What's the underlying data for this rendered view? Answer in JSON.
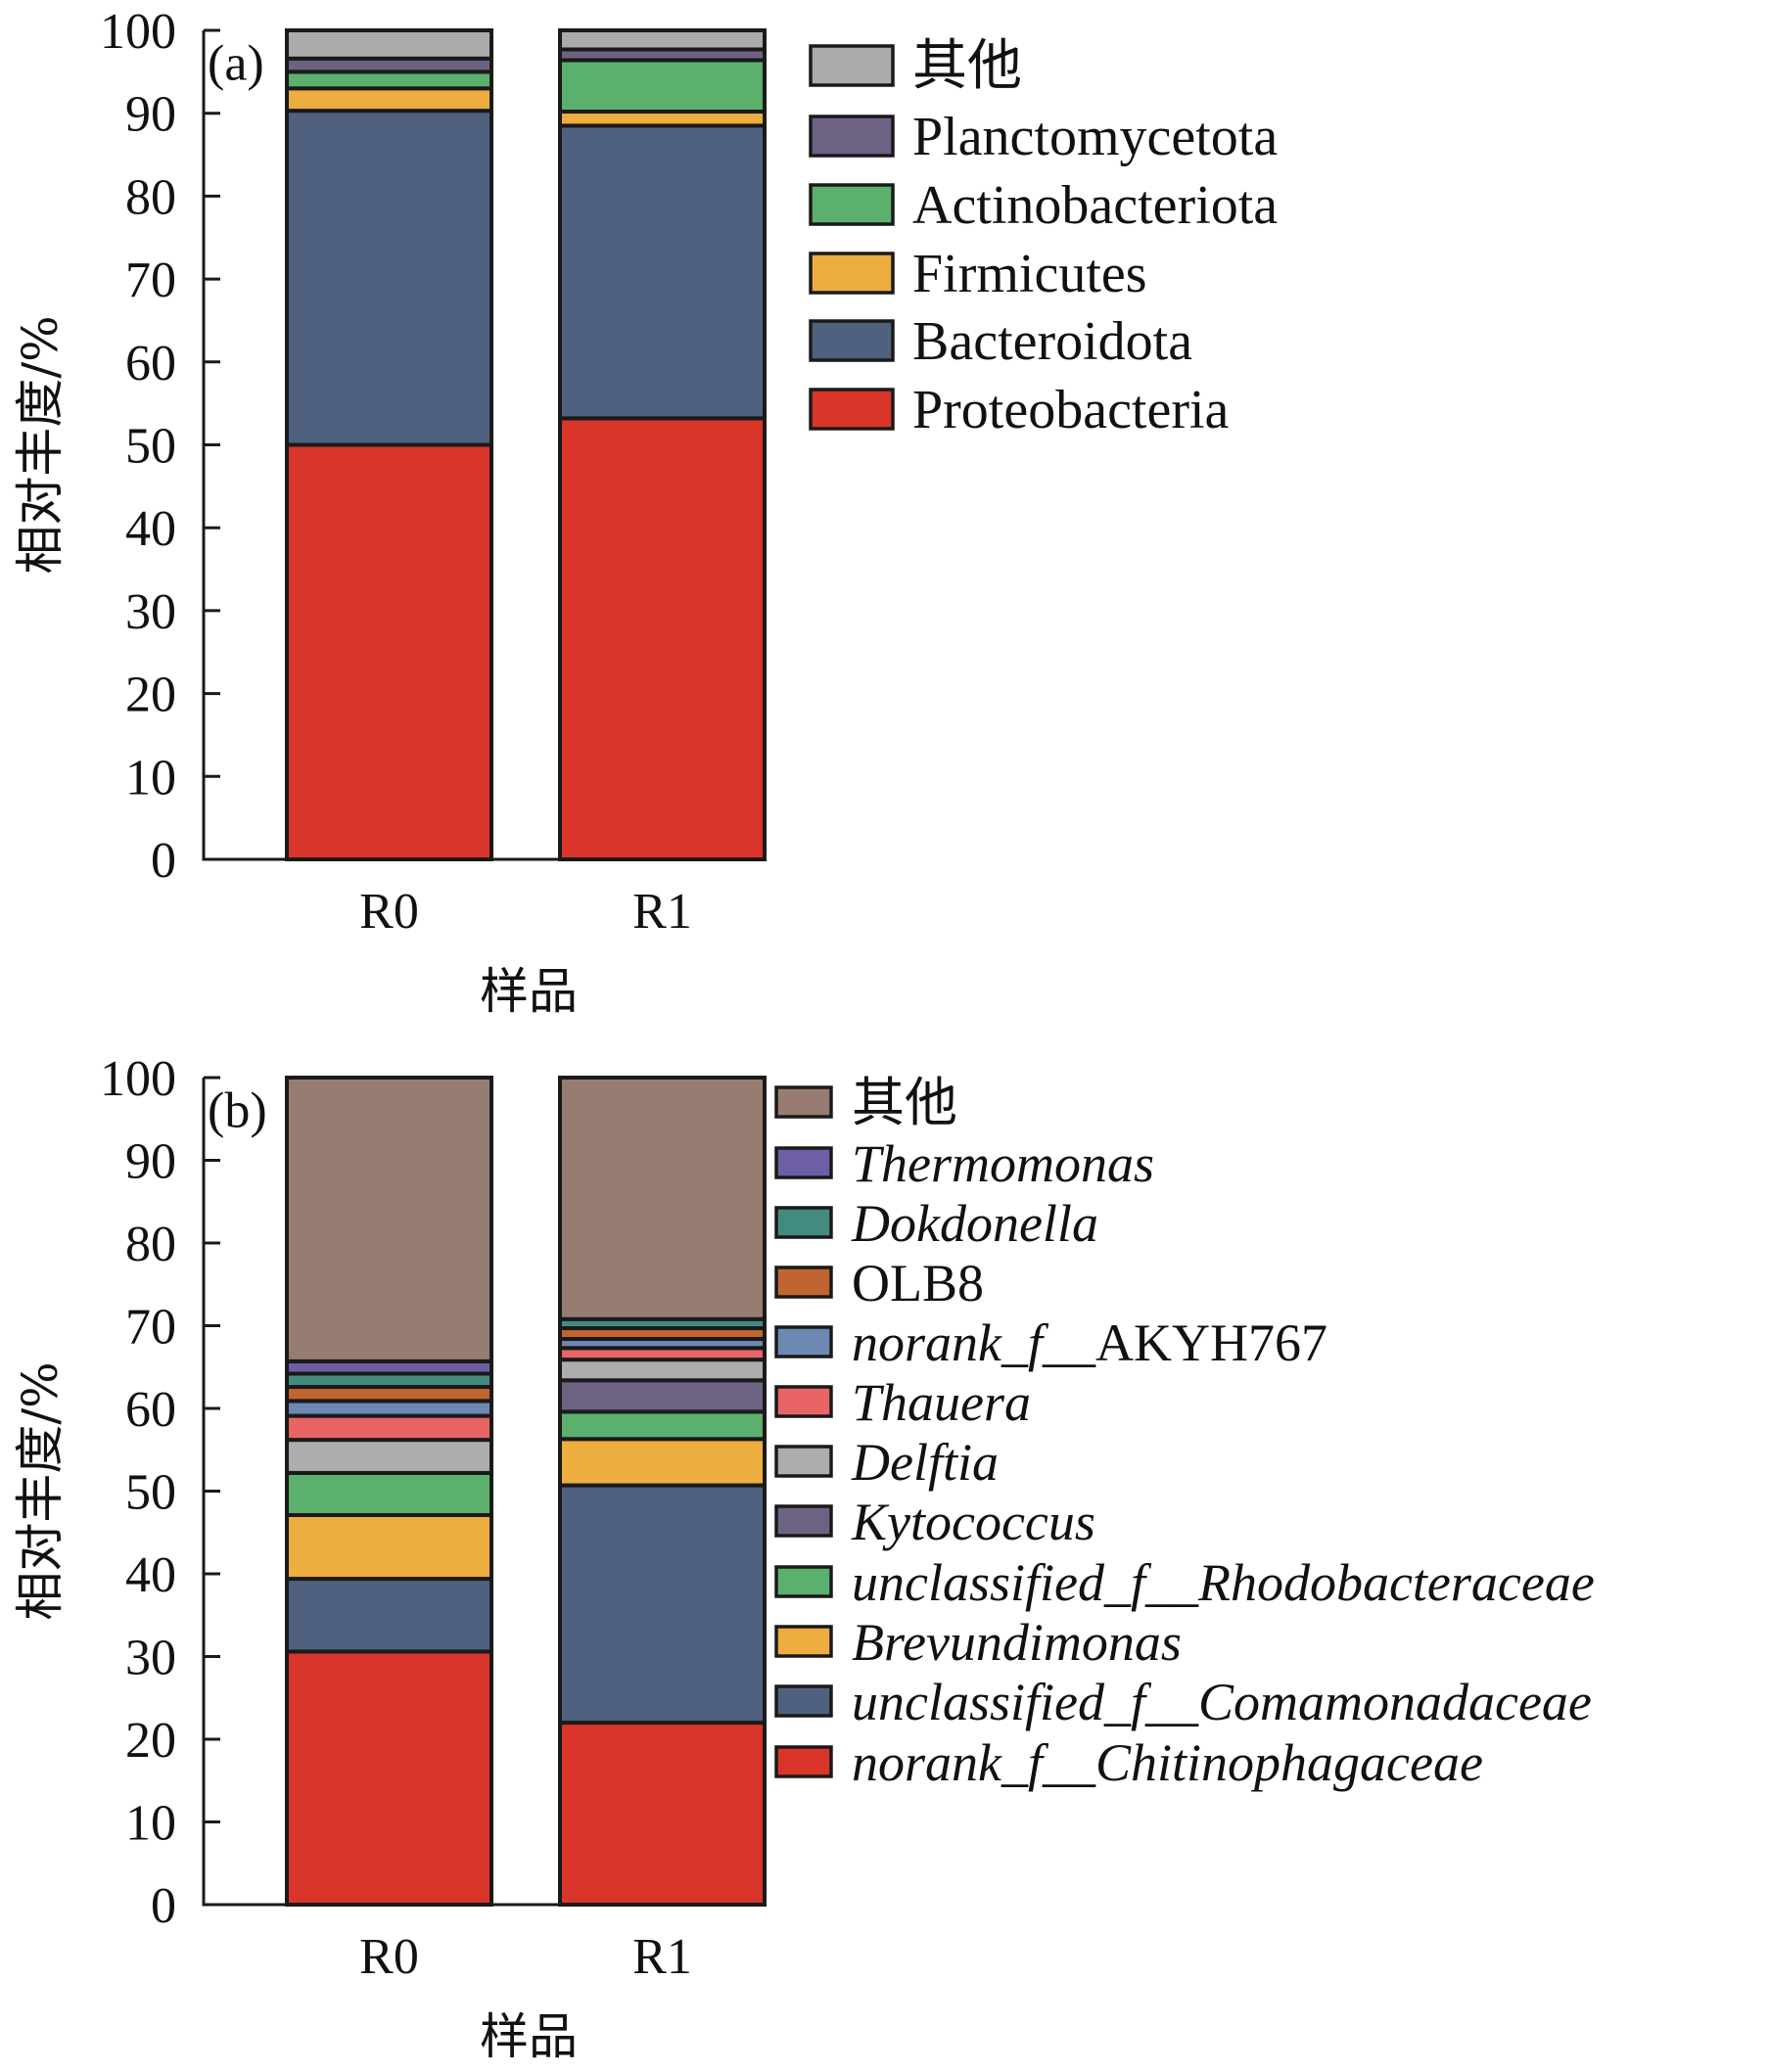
{
  "chart_data": [
    {
      "type": "bar",
      "stacked": true,
      "panel_label": "(a)",
      "title": "",
      "xlabel": "样品",
      "ylabel": "相对丰度/%",
      "ylim": [
        0,
        100
      ],
      "yticks": [
        0,
        10,
        20,
        30,
        40,
        50,
        60,
        70,
        80,
        90,
        100
      ],
      "categories": [
        "R0",
        "R1"
      ],
      "legend_position": "right",
      "series": [
        {
          "name": "Proteobacteria",
          "italic": false,
          "color": "#d9352a",
          "values": [
            50.0,
            53.2
          ]
        },
        {
          "name": "Bacteroidota",
          "italic": false,
          "color": "#4f617f",
          "values": [
            40.3,
            35.3
          ]
        },
        {
          "name": "Firmicutes",
          "italic": false,
          "color": "#eead3f",
          "values": [
            2.7,
            1.7
          ]
        },
        {
          "name": "Actinobacteriota",
          "italic": false,
          "color": "#5bb06d",
          "values": [
            2.0,
            6.2
          ]
        },
        {
          "name": "Planctomycetota",
          "italic": false,
          "color": "#6e6283",
          "values": [
            1.6,
            1.3
          ]
        },
        {
          "name": "其他",
          "italic": false,
          "color": "#ababab",
          "values": [
            3.4,
            2.3
          ]
        }
      ]
    },
    {
      "type": "bar",
      "stacked": true,
      "panel_label": "(b)",
      "title": "",
      "xlabel": "样品",
      "ylabel": "相对丰度/%",
      "ylim": [
        0,
        100
      ],
      "yticks": [
        0,
        10,
        20,
        30,
        40,
        50,
        60,
        70,
        80,
        90,
        100
      ],
      "categories": [
        "R0",
        "R1"
      ],
      "legend_position": "right",
      "series": [
        {
          "name": "norank_f__Chitinophagaceae",
          "italic": true,
          "color": "#d9352a",
          "values": [
            30.6,
            22.0
          ]
        },
        {
          "name": "unclassified_f__Comamonadaceae",
          "italic": true,
          "color": "#4f617f",
          "values": [
            8.8,
            28.7
          ]
        },
        {
          "name": "Brevundimonas",
          "italic": true,
          "color": "#eead3f",
          "values": [
            7.7,
            5.6
          ]
        },
        {
          "name": "unclassified_f__Rhodobacteraceae",
          "italic": true,
          "color": "#5bb06d",
          "values": [
            5.1,
            3.3
          ]
        },
        {
          "name": "Kytococcus",
          "italic": true,
          "color": "#6e6283",
          "values": [
            0.0,
            3.8
          ]
        },
        {
          "name": "Delftia",
          "italic": true,
          "color": "#adadad",
          "values": [
            4.0,
            2.5
          ]
        },
        {
          "name": "Thauera",
          "italic": true,
          "color": "#e96565",
          "values": [
            2.9,
            1.4
          ]
        },
        {
          "name": "norank_f__AKYH767",
          "italic": "partial",
          "color": "#6d88b3",
          "values": [
            1.8,
            1.1
          ]
        },
        {
          "name": "OLB8",
          "italic": false,
          "color": "#c06530",
          "values": [
            1.7,
            1.3
          ]
        },
        {
          "name": "Dokdonella",
          "italic": true,
          "color": "#438b80",
          "values": [
            1.6,
            1.1
          ]
        },
        {
          "name": "Thermomonas",
          "italic": true,
          "color": "#6e5ea5",
          "values": [
            1.5,
            0.0
          ]
        },
        {
          "name": "其他",
          "italic": false,
          "color": "#977d71",
          "values": [
            34.3,
            29.2
          ]
        }
      ]
    }
  ]
}
